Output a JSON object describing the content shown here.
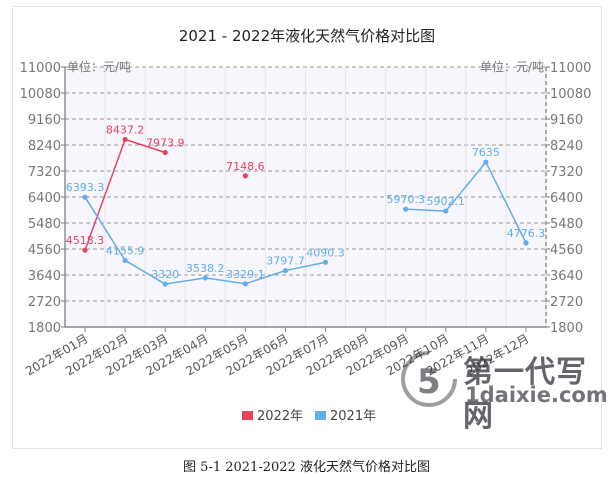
{
  "chart_data": {
    "type": "line",
    "title": "2021 - 2022年液化天然气价格对比图",
    "unit_left": "单位：元/吨",
    "unit_right": "单位：元/吨",
    "categories": [
      "2022年01月",
      "2022年02月",
      "2022年03月",
      "2022年04月",
      "2022年05月",
      "2022年06月",
      "2022年07月",
      "2022年08月",
      "2022年09月",
      "2022年10月",
      "2022年11月",
      "2022年12月"
    ],
    "yticks": [
      "11000",
      "10080",
      "9160",
      "8240",
      "7320",
      "6400",
      "5480",
      "4560",
      "3640",
      "2720",
      "1800"
    ],
    "ylim": [
      1800,
      11000
    ],
    "grid": true,
    "legend_position": "bottom",
    "series": [
      {
        "name": "2022年",
        "color": "#e8435e",
        "values": [
          4518.3,
          8437.2,
          7973.9,
          null,
          7148.6,
          null,
          null,
          null,
          null,
          null,
          null,
          null
        ],
        "labels": [
          "4518.3",
          "8437.2",
          "7973.9",
          "",
          "7148.6",
          "",
          "",
          "",
          "",
          "",
          "",
          ""
        ]
      },
      {
        "name": "2021年",
        "color": "#64aee8",
        "values": [
          6393.3,
          4155.9,
          3320,
          3538.2,
          3329.1,
          3797.7,
          4090.3,
          null,
          5970.3,
          5902.1,
          7635,
          4776.3
        ],
        "labels": [
          "6393.3",
          "4155.9",
          "3320",
          "3538.2",
          "3329.1",
          "3797.7",
          "4090.3",
          "",
          "5970.3",
          "5902.1",
          "7635",
          "4776.3"
        ]
      }
    ]
  },
  "caption": "图 5-1 2021-2022 液化天然气价格对比图",
  "watermark": {
    "cn": "第一代写网",
    "en": "1daixie.com"
  }
}
